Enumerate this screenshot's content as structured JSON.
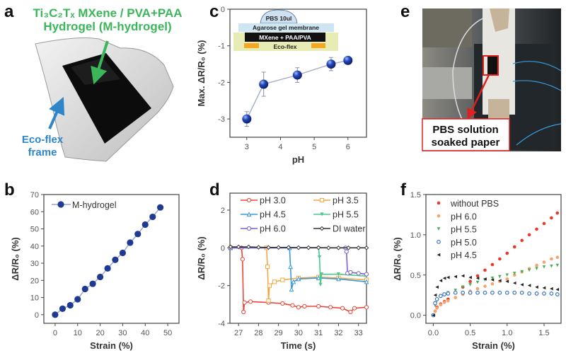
{
  "panels": {
    "a": {
      "label": "a",
      "title_line1": "Ti₃C₂Tₓ MXene / PVA+PAA",
      "title_line2": "Hydrogel (M-hydrogel)",
      "frame_label_line1": "Eco-flex",
      "frame_label_line2": "frame",
      "colors": {
        "title": "#3cb65a",
        "frame_label": "#2e86c8"
      }
    },
    "b": {
      "label": "b"
    },
    "c": {
      "label": "c",
      "inset": {
        "drop": "PBS 10ul",
        "membrane": "Agarose gel membrane",
        "sensor": "MXene + PAA/PVA",
        "substrate": "Eco-flex"
      }
    },
    "d": {
      "label": "d"
    },
    "e": {
      "label": "e",
      "callout_line1": "PBS solution",
      "callout_line2": "soaked paper"
    },
    "f": {
      "label": "f"
    }
  },
  "chart_data": [
    {
      "id": "b",
      "type": "line",
      "xlabel": "Strain (%)",
      "ylabel": "ΔR/R₀ (%)",
      "xlim": [
        -5,
        55
      ],
      "ylim": [
        -5,
        70
      ],
      "xticks": [
        "0",
        "10",
        "20",
        "30",
        "40",
        "50"
      ],
      "yticks": [
        "0",
        "10",
        "20",
        "30",
        "40",
        "50",
        "60",
        "70"
      ],
      "legend": "top-left",
      "series": [
        {
          "name": "M-hydrogel",
          "color": "#1f3a93",
          "x": [
            0,
            3.3,
            6.7,
            10,
            13.3,
            16.7,
            20,
            23.3,
            26.7,
            30,
            33.3,
            36.7,
            40,
            43.3,
            46.7
          ],
          "y": [
            0,
            3.5,
            5.5,
            9,
            15,
            18,
            22,
            27,
            32,
            36,
            42,
            47,
            52.5,
            57,
            62.5
          ]
        }
      ]
    },
    {
      "id": "c",
      "type": "line",
      "xlabel": "pH",
      "ylabel": "Max. ΔR/R₀ (%)",
      "xlim": [
        2.5,
        6.55
      ],
      "ylim": [
        -3.5,
        0
      ],
      "xticks": [
        "3",
        "4",
        "5",
        "6"
      ],
      "yticks": [
        "0",
        "-1",
        "-2",
        "-3"
      ],
      "series": [
        {
          "color": "#1d3fa8",
          "x": [
            3,
            3.5,
            4.5,
            5.5,
            6
          ],
          "y": [
            -3.0,
            -2.05,
            -1.8,
            -1.5,
            -1.4
          ],
          "error": [
            0.2,
            0.33,
            0.2,
            0.18,
            0.05
          ]
        }
      ]
    },
    {
      "id": "d",
      "type": "line",
      "xlabel": "Time (s)",
      "ylabel": "ΔR/R₀ (%)",
      "xlim": [
        26.57,
        33.4
      ],
      "ylim": [
        -4,
        2.9
      ],
      "xticks": [
        "27",
        "28",
        "29",
        "30",
        "31",
        "32",
        "33"
      ],
      "yticks": [
        "2",
        "0",
        "-2",
        "-4"
      ],
      "legend": "top-right",
      "series": [
        {
          "name": "pH 3.0",
          "color": "#e8463a",
          "marker": "circle",
          "points": [
            [
              26.6,
              0
            ],
            [
              27.15,
              0
            ],
            [
              27.2,
              -0.6
            ],
            [
              27.25,
              -3.4
            ],
            [
              27.3,
              -2.9
            ],
            [
              27.6,
              -2.85
            ],
            [
              28.5,
              -2.9
            ],
            [
              29.2,
              -2.95
            ],
            [
              29.7,
              -3.05
            ],
            [
              30.0,
              -3.15
            ],
            [
              30.3,
              -3.1
            ],
            [
              31.0,
              -3.1
            ],
            [
              31.6,
              -3.15
            ],
            [
              32.2,
              -3.2
            ],
            [
              32.6,
              -3.4
            ],
            [
              32.8,
              -3.2
            ],
            [
              33.4,
              -3.15
            ]
          ]
        },
        {
          "name": "pH 3.5",
          "color": "#f5a742",
          "marker": "square",
          "points": [
            [
              26.6,
              0
            ],
            [
              28.4,
              0
            ],
            [
              28.45,
              -1.0
            ],
            [
              28.5,
              -2.8
            ],
            [
              28.55,
              -2.0
            ],
            [
              28.8,
              -1.8
            ],
            [
              29.2,
              -1.7
            ],
            [
              30,
              -1.6
            ],
            [
              31,
              -1.55
            ],
            [
              32,
              -1.6
            ],
            [
              33.4,
              -1.7
            ]
          ]
        },
        {
          "name": "pH 4.5",
          "color": "#3a9ad9",
          "marker": "triangle",
          "points": [
            [
              26.6,
              0
            ],
            [
              29.55,
              0
            ],
            [
              29.6,
              -1.0
            ],
            [
              29.65,
              -2.2
            ],
            [
              29.75,
              -1.8
            ],
            [
              30,
              -1.65
            ],
            [
              31,
              -1.6
            ],
            [
              32,
              -1.65
            ],
            [
              33.4,
              -1.8
            ]
          ]
        },
        {
          "name": "pH 5.5",
          "color": "#4dc98a",
          "marker": "triangle-down",
          "points": [
            [
              26.6,
              0
            ],
            [
              31.0,
              0
            ],
            [
              31.05,
              -0.5
            ],
            [
              31.1,
              -1.95
            ],
            [
              31.15,
              -1.4
            ],
            [
              32,
              -1.4
            ],
            [
              33.4,
              -1.5
            ]
          ]
        },
        {
          "name": "pH 6.0",
          "color": "#7b5fc9",
          "marker": "circle",
          "points": [
            [
              26.6,
              0
            ],
            [
              32.35,
              0
            ],
            [
              32.4,
              -0.2
            ],
            [
              32.45,
              -1.35
            ],
            [
              32.6,
              -1.3
            ],
            [
              33,
              -1.35
            ],
            [
              33.4,
              -1.4
            ]
          ]
        },
        {
          "name": "DI water",
          "color": "#333333",
          "marker": "diamond",
          "points": [
            [
              26.6,
              0.05
            ],
            [
              27.0,
              0.05
            ],
            [
              27.5,
              0.05
            ],
            [
              28.0,
              0.03
            ],
            [
              28.5,
              0.02
            ],
            [
              29.0,
              0.02
            ],
            [
              29.5,
              0.02
            ],
            [
              30.0,
              0.01
            ],
            [
              30.5,
              0.01
            ],
            [
              31.0,
              0.01
            ],
            [
              31.5,
              0.0
            ],
            [
              32.0,
              0.0
            ],
            [
              32.5,
              0.0
            ],
            [
              33.0,
              0.0
            ],
            [
              33.4,
              0.0
            ]
          ]
        }
      ]
    },
    {
      "id": "f",
      "type": "scatter",
      "xlabel": "Strain (%)",
      "ylabel": "ΔR/R₀ (%)",
      "xlim": [
        -0.1,
        1.73
      ],
      "ylim": [
        -0.1,
        1.5
      ],
      "xticks": [
        "0.0",
        "0.5",
        "1.0",
        "1.5"
      ],
      "yticks": [
        "0.0",
        "0.5",
        "1.0",
        "1.5"
      ],
      "legend": "top-left",
      "x": [
        0,
        0.025,
        0.05,
        0.1,
        0.15,
        0.2,
        0.3,
        0.4,
        0.5,
        0.6,
        0.7,
        0.8,
        0.9,
        1.0,
        1.1,
        1.2,
        1.3,
        1.4,
        1.5,
        1.6,
        1.68
      ],
      "series": [
        {
          "name": "without PBS",
          "color": "#e8392c",
          "marker": "circle-filled",
          "values": [
            0,
            0.05,
            0.1,
            0.14,
            0.17,
            0.2,
            0.28,
            0.35,
            0.42,
            0.49,
            0.56,
            0.63,
            0.7,
            0.77,
            0.85,
            0.93,
            1.0,
            1.07,
            1.14,
            1.21,
            1.27
          ]
        },
        {
          "name": "pH 6.0",
          "color": "#f4a46c",
          "marker": "circle-filled",
          "values": [
            0,
            0.05,
            0.09,
            0.13,
            0.16,
            0.18,
            0.22,
            0.26,
            0.3,
            0.33,
            0.36,
            0.39,
            0.42,
            0.45,
            0.5,
            0.54,
            0.58,
            0.62,
            0.66,
            0.7,
            0.72
          ]
        },
        {
          "name": "pH 5.5",
          "color": "#4caf50",
          "marker": "triangle-down",
          "values": [
            0,
            0.12,
            0.18,
            0.23,
            0.26,
            0.28,
            0.31,
            0.35,
            0.38,
            0.41,
            0.44,
            0.46,
            0.48,
            0.5,
            0.52,
            0.54,
            0.56,
            0.58,
            0.6,
            0.61,
            0.62
          ]
        },
        {
          "name": "pH 5.0",
          "color": "#3b78c2",
          "marker": "diamond-open",
          "values": [
            0,
            0.15,
            0.2,
            0.24,
            0.26,
            0.27,
            0.28,
            0.28,
            0.28,
            0.28,
            0.28,
            0.28,
            0.28,
            0.28,
            0.28,
            0.28,
            0.27,
            0.27,
            0.27,
            0.27,
            0.26
          ]
        },
        {
          "name": "pH 4.5",
          "color": "#222222",
          "marker": "triangle-left",
          "values": [
            0,
            0.25,
            0.35,
            0.43,
            0.46,
            0.47,
            0.48,
            0.49,
            0.47,
            0.46,
            0.45,
            0.44,
            0.43,
            0.42,
            0.4,
            0.38,
            0.37,
            0.35,
            0.34,
            0.33,
            0.32
          ]
        }
      ]
    }
  ]
}
